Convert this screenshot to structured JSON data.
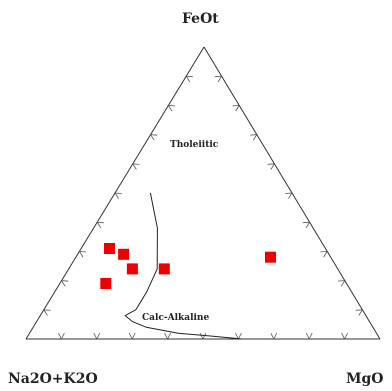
{
  "chart_data": {
    "type": "scatter",
    "subtype": "ternary",
    "title": "",
    "vertices": {
      "top": "FeOt",
      "left": "Na2O+K2O",
      "right": "MgO"
    },
    "fields": [
      "Tholeiitic",
      "Calc-Alkaline"
    ],
    "ticks_per_edge": 9,
    "grid": false,
    "divider_line_abc": [
      [
        40,
        50,
        10
      ],
      [
        44,
        38,
        18
      ],
      [
        51,
        24,
        25
      ],
      [
        58,
        16,
        26
      ],
      [
        64,
        10,
        26
      ],
      [
        68,
        8,
        24
      ],
      [
        67,
        6,
        27
      ],
      [
        64,
        4,
        32
      ],
      [
        56,
        2,
        42
      ],
      [
        47,
        1,
        52
      ],
      [
        39,
        0,
        61
      ]
    ],
    "points": [
      {
        "A": 17,
        "F": 28,
        "M": 55,
        "color": "#ee0000"
      },
      {
        "A": 61,
        "F": 31,
        "M": 8,
        "color": "#ee0000"
      },
      {
        "A": 58,
        "F": 29,
        "M": 13,
        "color": "#ee0000"
      },
      {
        "A": 58,
        "F": 24,
        "M": 18,
        "color": "#ee0000"
      },
      {
        "A": 68,
        "F": 19,
        "M": 13,
        "color": "#ee0000"
      },
      {
        "A": 49,
        "F": 24,
        "M": 27,
        "color": "#ee0000"
      }
    ]
  }
}
